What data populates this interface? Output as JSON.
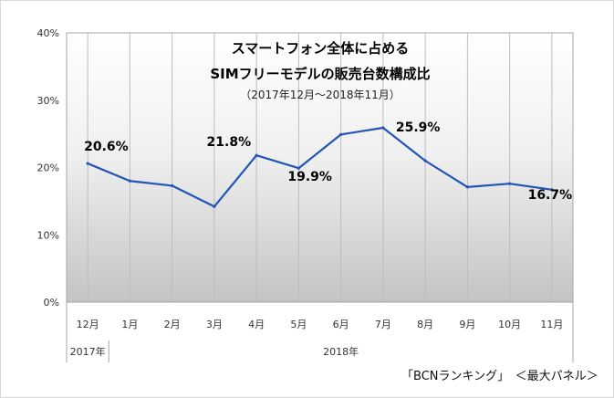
{
  "chart_data": {
    "type": "line",
    "title_lines": [
      "スマートフォン全体に占める",
      "SIMフリーモデルの販売台数構成比"
    ],
    "subtitle": "（2017年12月～2018年11月）",
    "categories": [
      "12月",
      "1月",
      "2月",
      "3月",
      "4月",
      "5月",
      "6月",
      "7月",
      "8月",
      "9月",
      "10月",
      "11月"
    ],
    "values": [
      20.6,
      18.0,
      17.3,
      14.2,
      21.8,
      19.9,
      24.9,
      25.9,
      21.0,
      17.1,
      17.6,
      16.7
    ],
    "data_labels": [
      {
        "index": 0,
        "text": "20.6%"
      },
      {
        "index": 4,
        "text": "21.8%"
      },
      {
        "index": 5,
        "text": "19.9%"
      },
      {
        "index": 7,
        "text": "25.9%"
      },
      {
        "index": 11,
        "text": "16.7%"
      }
    ],
    "y_ticks": [
      "0%",
      "10%",
      "20%",
      "30%",
      "40%"
    ],
    "ylim": [
      0,
      40
    ],
    "year_labels": [
      "2017年",
      "2018年"
    ],
    "grid": "vertical",
    "line_color": "#2255b5"
  },
  "source_text": "「BCNランキング」　＜最大パネル＞"
}
